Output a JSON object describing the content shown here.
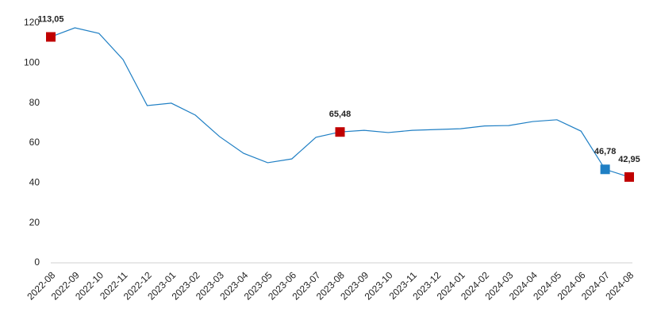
{
  "chart_data": {
    "type": "line",
    "categories": [
      "2022-08",
      "2022-09",
      "2022-10",
      "2022-11",
      "2022-12",
      "2023-01",
      "2023-02",
      "2023-03",
      "2023-04",
      "2023-05",
      "2023-06",
      "2023-07",
      "2023-08",
      "2023-09",
      "2023-10",
      "2023-11",
      "2023-12",
      "2024-01",
      "2024-02",
      "2024-03",
      "2024-04",
      "2024-05",
      "2024-06",
      "2024-07",
      "2024-08"
    ],
    "series": [
      {
        "color": "#1f7fc4",
        "values": [
          113.05,
          117.6,
          114.8,
          101.7,
          78.7,
          79.9,
          73.9,
          63.2,
          54.8,
          50.1,
          52.0,
          62.8,
          65.48,
          66.3,
          65.2,
          66.3,
          66.7,
          67.1,
          68.5,
          68.7,
          70.7,
          71.6,
          65.9,
          46.78,
          42.95
        ],
        "value_labels": [
          "113,05",
          null,
          null,
          null,
          null,
          null,
          null,
          null,
          null,
          null,
          null,
          null,
          "65,48",
          null,
          null,
          null,
          null,
          null,
          null,
          null,
          null,
          null,
          null,
          "46,78",
          "42,95"
        ],
        "marker_colors": [
          "#c00000",
          null,
          null,
          null,
          null,
          null,
          null,
          null,
          null,
          null,
          null,
          null,
          "#c00000",
          null,
          null,
          null,
          null,
          null,
          null,
          null,
          null,
          null,
          null,
          "#1f7fc4",
          "#c00000"
        ]
      }
    ],
    "ylim": [
      0,
      120
    ],
    "yticks": [
      0,
      20,
      40,
      60,
      80,
      100,
      120
    ],
    "grid": false
  }
}
